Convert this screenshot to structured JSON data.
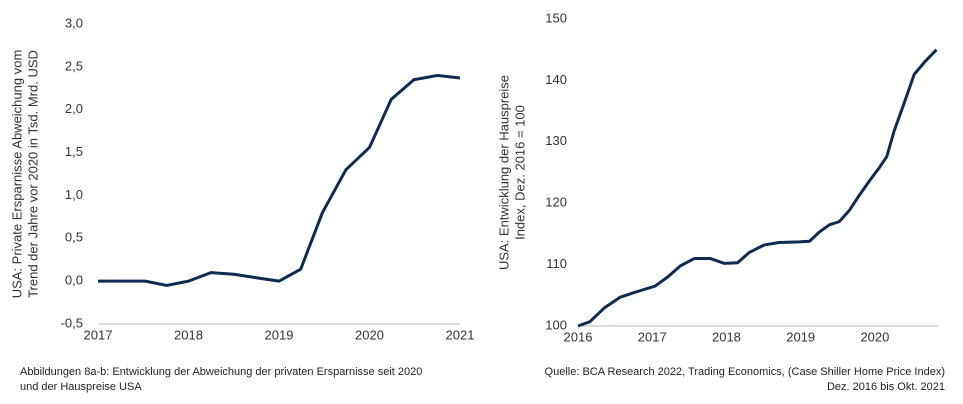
{
  "chart_data": [
    {
      "type": "line",
      "y_label": [
        "USA: Private Ersparnisse Abweichung vom",
        "Trend der Jahre vor 2020 in Tsd. Mrd. USD"
      ],
      "caption": [
        "Abbildungen 8a-b: Entwicklung der Abweichung der privaten Ersparnisse seit 2020",
        "und der Hauspreise USA"
      ],
      "x": [
        2017.0,
        2017.25,
        2017.52,
        2017.76,
        2018.0,
        2018.25,
        2018.5,
        2018.75,
        2019.0,
        2019.24,
        2019.48,
        2019.74,
        2020.0,
        2020.24,
        2020.49,
        2020.75,
        2021.0
      ],
      "values": [
        0,
        0,
        0,
        -0.05,
        0,
        0.1,
        0.08,
        0.04,
        0,
        0.14,
        0.8,
        1.3,
        1.56,
        2.12,
        2.35,
        2.4,
        2.37
      ],
      "color": "#0f2b52",
      "xlim": [
        2017,
        2021
      ],
      "xticks": [
        2017,
        2018,
        2019,
        2020,
        2021
      ],
      "ylim": [
        -0.5,
        3.0
      ],
      "yticks": [
        {
          "value": -0.5,
          "label": "-0,5"
        },
        {
          "value": 0,
          "label": "0,0"
        },
        {
          "value": 0.5,
          "label": "0,5"
        },
        {
          "value": 1.0,
          "label": "1,0"
        },
        {
          "value": 1.5,
          "label": "1,5"
        },
        {
          "value": 2.0,
          "label": "2,0"
        },
        {
          "value": 2.5,
          "label": "2,5"
        },
        {
          "value": 3.0,
          "label": "3,0"
        }
      ]
    },
    {
      "type": "line",
      "y_label": [
        "USA: Entwicklung der Hauspreise",
        "Index, Dez. 2016 = 100"
      ],
      "caption": [
        "Quelle: BCA Research 2022, Trading Economics, (Case Shiller Home Price Index)",
        "Dez. 2016 bis Okt. 2021"
      ],
      "x": [
        2016.0,
        2016.16,
        2016.36,
        2016.57,
        2016.77,
        2017.04,
        2017.21,
        2017.38,
        2017.57,
        2017.78,
        2017.97,
        2018.15,
        2018.31,
        2018.51,
        2018.71,
        2018.98,
        2019.12,
        2019.25,
        2019.39,
        2019.52,
        2019.66,
        2019.79,
        2019.93,
        2020.06,
        2020.16,
        2020.26,
        2020.4,
        2020.53,
        2020.67,
        2020.83
      ],
      "values": [
        100,
        100.7,
        103,
        104.7,
        105.5,
        106.5,
        108,
        109.8,
        111,
        111,
        110.2,
        110.3,
        112,
        113.2,
        113.6,
        113.7,
        113.8,
        115.3,
        116.5,
        117,
        118.9,
        121.3,
        123.7,
        125.8,
        127.6,
        131.8,
        136.5,
        141,
        143,
        145
      ],
      "color": "#0f2b52",
      "xlim": [
        2016,
        2020.85
      ],
      "xticks": [
        2016,
        2017,
        2018,
        2019,
        2020
      ],
      "ylim": [
        100,
        150
      ],
      "yticks": [
        100,
        110,
        120,
        130,
        140,
        150
      ]
    }
  ]
}
